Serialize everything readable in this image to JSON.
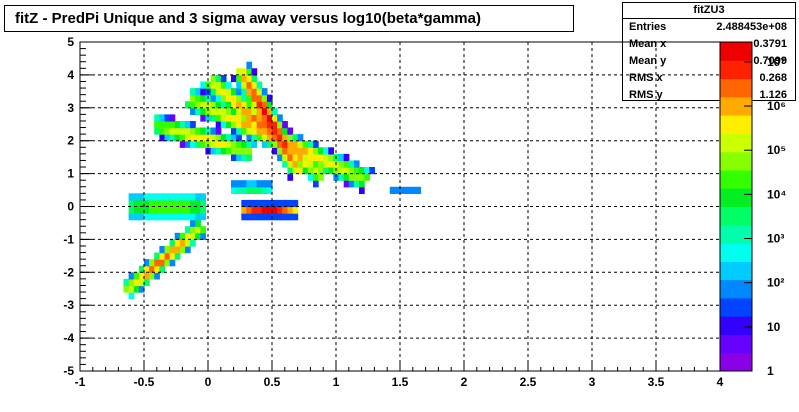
{
  "title": "fitZ - PredPi Unique and 3 sigma away versus log10(beta*gamma)",
  "stats": {
    "name": "fitZU3",
    "rows": [
      {
        "label": "Entries",
        "value": "2.488453e+08"
      },
      {
        "label": "Mean x",
        "value": "0.3791"
      },
      {
        "label": "Mean y",
        "value": "0.7099"
      },
      {
        "label": "RMS x",
        "value": "0.268"
      },
      {
        "label": "RMS y",
        "value": "1.126"
      }
    ]
  },
  "chart_data": {
    "type": "heatmap",
    "title": "fitZ - PredPi Unique and 3 sigma away versus log10(beta*gamma)",
    "xlabel": "",
    "ylabel": "",
    "xlim": [
      -1,
      4
    ],
    "ylim": [
      -5,
      5
    ],
    "x_ticks": [
      "-1",
      "-0.5",
      "0",
      "0.5",
      "1",
      "1.5",
      "2",
      "2.5",
      "3",
      "3.5",
      "4"
    ],
    "y_ticks": [
      "-5",
      "-4",
      "-3",
      "-2",
      "-1",
      "0",
      "1",
      "2",
      "3",
      "4",
      "5"
    ],
    "grid": true,
    "z_scale": "log",
    "z_ticks": [
      "1",
      "10",
      "10²",
      "10³",
      "10⁴",
      "10⁵",
      "10⁶",
      "10⁷"
    ],
    "palette": [
      "#8a00e6",
      "#6600ff",
      "#3300ff",
      "#0044ff",
      "#0088ff",
      "#00ccff",
      "#00ffee",
      "#00ffaa",
      "#00ff66",
      "#00ee22",
      "#33ff00",
      "#88ff00",
      "#ccff00",
      "#ffee00",
      "#ffaa00",
      "#ff6600",
      "#ff2200",
      "#ee0000"
    ],
    "bands": [
      {
        "x": [
          0.25,
          0.72
        ],
        "y": [
          4.2,
          1.0
        ],
        "peak": 0.95,
        "width": 0.35
      },
      {
        "x": [
          0.0,
          0.9
        ],
        "y": [
          3.9,
          0.9
        ],
        "peak": 0.85,
        "width": 0.35
      },
      {
        "x": [
          -0.15,
          1.25
        ],
        "y": [
          3.3,
          0.8
        ],
        "peak": 0.8,
        "width": 0.38
      },
      {
        "x": [
          -0.42,
          0.35
        ],
        "y": [
          2.5,
          1.65
        ],
        "peak": 0.75,
        "width": 0.35
      },
      {
        "x": [
          -0.62,
          0.0
        ],
        "y": [
          0.0,
          0.0
        ],
        "peak": 0.6,
        "width": 0.45
      },
      {
        "x": [
          0.2,
          0.5
        ],
        "y": [
          0.55,
          0.55
        ],
        "peak": 0.45,
        "width": 0.22
      },
      {
        "x": [
          0.25,
          0.7
        ],
        "y": [
          -0.1,
          -0.1
        ],
        "peak": 0.95,
        "width": 0.22
      },
      {
        "x": [
          -0.65,
          -0.05
        ],
        "y": [
          -2.6,
          -0.6
        ],
        "peak": 0.85,
        "width": 0.3
      },
      {
        "x": [
          1.42,
          1.68
        ],
        "y": [
          0.45,
          0.45
        ],
        "peak": 0.25,
        "width": 0.15
      }
    ]
  }
}
